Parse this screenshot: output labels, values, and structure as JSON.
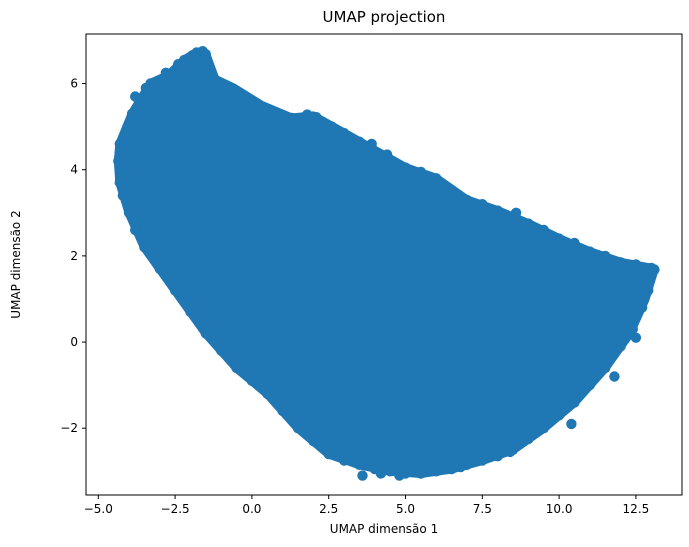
{
  "chart_data": {
    "type": "scatter",
    "title": "UMAP projection",
    "xlabel": "UMAP dimensão 1",
    "ylabel": "UMAP dimensão 2",
    "xlim": [
      -5.4,
      14.0
    ],
    "ylim": [
      -3.55,
      7.15
    ],
    "xticks": [
      {
        "value": -5.0,
        "label": "−5.0"
      },
      {
        "value": -2.5,
        "label": "−2.5"
      },
      {
        "value": 0.0,
        "label": "0.0"
      },
      {
        "value": 2.5,
        "label": "2.5"
      },
      {
        "value": 5.0,
        "label": "5.0"
      },
      {
        "value": 7.5,
        "label": "7.5"
      },
      {
        "value": 10.0,
        "label": "10.0"
      },
      {
        "value": 12.5,
        "label": "12.5"
      }
    ],
    "yticks": [
      {
        "value": -2,
        "label": "−2"
      },
      {
        "value": 0,
        "label": "0"
      },
      {
        "value": 2,
        "label": "2"
      },
      {
        "value": 4,
        "label": "4"
      },
      {
        "value": 6,
        "label": "6"
      }
    ],
    "grid": false,
    "series": [
      {
        "color": "#1f77b4",
        "outline": [
          [
            -4.3,
            4.6
          ],
          [
            -3.9,
            5.3
          ],
          [
            -3.3,
            6.0
          ],
          [
            -2.7,
            6.2
          ],
          [
            -2.2,
            6.55
          ],
          [
            -1.8,
            6.72
          ],
          [
            -1.5,
            6.68
          ],
          [
            -1.2,
            6.1
          ],
          [
            -0.6,
            5.9
          ],
          [
            0.3,
            5.5
          ],
          [
            1.3,
            5.2
          ],
          [
            2.0,
            5.25
          ],
          [
            3.0,
            4.85
          ],
          [
            4.0,
            4.45
          ],
          [
            5.0,
            4.05
          ],
          [
            6.0,
            3.8
          ],
          [
            7.0,
            3.3
          ],
          [
            8.0,
            3.05
          ],
          [
            9.0,
            2.75
          ],
          [
            10.0,
            2.4
          ],
          [
            11.0,
            2.1
          ],
          [
            12.0,
            1.85
          ],
          [
            13.1,
            1.7
          ],
          [
            12.8,
            1.0
          ],
          [
            12.3,
            0.2
          ],
          [
            11.5,
            -0.6
          ],
          [
            10.5,
            -1.4
          ],
          [
            9.5,
            -2.0
          ],
          [
            8.5,
            -2.5
          ],
          [
            7.5,
            -2.75
          ],
          [
            6.5,
            -2.95
          ],
          [
            5.5,
            -3.05
          ],
          [
            4.5,
            -3.0
          ],
          [
            3.5,
            -2.85
          ],
          [
            2.5,
            -2.6
          ],
          [
            1.5,
            -2.0
          ],
          [
            0.5,
            -1.2
          ],
          [
            -0.5,
            -0.6
          ],
          [
            -1.5,
            0.2
          ],
          [
            -2.5,
            1.2
          ],
          [
            -3.5,
            2.2
          ],
          [
            -4.0,
            3.0
          ],
          [
            -4.3,
            3.7
          ],
          [
            -4.35,
            4.2
          ]
        ],
        "points": [
          [
            -4.3,
            4.6
          ],
          [
            -4.2,
            4.1
          ],
          [
            -3.9,
            5.3
          ],
          [
            -3.3,
            6.0
          ],
          [
            -3.0,
            5.95
          ],
          [
            -2.7,
            6.2
          ],
          [
            -2.4,
            6.45
          ],
          [
            -2.2,
            6.55
          ],
          [
            -1.95,
            6.65
          ],
          [
            -1.8,
            6.72
          ],
          [
            -1.6,
            6.75
          ],
          [
            -1.5,
            6.68
          ],
          [
            -1.4,
            6.3
          ],
          [
            -1.3,
            6.05
          ],
          [
            -2.05,
            6.1
          ],
          [
            -1.0,
            5.9
          ],
          [
            -0.3,
            5.6
          ],
          [
            0.5,
            5.4
          ],
          [
            1.3,
            5.2
          ],
          [
            1.8,
            5.28
          ],
          [
            2.1,
            5.22
          ],
          [
            2.6,
            5.0
          ],
          [
            3.0,
            4.85
          ],
          [
            3.5,
            4.65
          ],
          [
            3.9,
            4.6
          ],
          [
            4.4,
            4.35
          ],
          [
            5.0,
            4.05
          ],
          [
            5.5,
            3.95
          ],
          [
            6.0,
            3.8
          ],
          [
            6.5,
            3.5
          ],
          [
            7.0,
            3.3
          ],
          [
            7.5,
            3.2
          ],
          [
            8.0,
            3.05
          ],
          [
            8.6,
            3.0
          ],
          [
            9.0,
            2.75
          ],
          [
            9.5,
            2.6
          ],
          [
            10.0,
            2.4
          ],
          [
            10.5,
            2.3
          ],
          [
            11.0,
            2.1
          ],
          [
            11.5,
            2.0
          ],
          [
            12.0,
            1.85
          ],
          [
            12.5,
            1.8
          ],
          [
            13.0,
            1.72
          ],
          [
            13.1,
            1.68
          ],
          [
            12.9,
            1.2
          ],
          [
            12.7,
            0.8
          ],
          [
            12.4,
            0.3
          ],
          [
            12.0,
            -0.1
          ],
          [
            11.5,
            -0.6
          ],
          [
            11.0,
            -1.0
          ],
          [
            10.5,
            -1.4
          ],
          [
            10.0,
            -1.7
          ],
          [
            9.5,
            -2.0
          ],
          [
            9.0,
            -2.25
          ],
          [
            8.5,
            -2.5
          ],
          [
            8.0,
            -2.65
          ],
          [
            7.5,
            -2.75
          ],
          [
            7.0,
            -2.85
          ],
          [
            6.5,
            -2.95
          ],
          [
            6.0,
            -3.0
          ],
          [
            5.5,
            -3.05
          ],
          [
            5.0,
            -3.05
          ],
          [
            4.5,
            -3.0
          ],
          [
            4.0,
            -2.95
          ],
          [
            3.5,
            -2.85
          ],
          [
            3.0,
            -2.75
          ],
          [
            2.5,
            -2.6
          ],
          [
            2.0,
            -2.3
          ],
          [
            1.5,
            -2.0
          ],
          [
            1.0,
            -1.6
          ],
          [
            0.5,
            -1.2
          ],
          [
            0.0,
            -0.9
          ],
          [
            -0.5,
            -0.6
          ],
          [
            -1.0,
            -0.2
          ],
          [
            -1.5,
            0.2
          ],
          [
            -2.0,
            0.7
          ],
          [
            -2.5,
            1.2
          ],
          [
            -3.0,
            1.7
          ],
          [
            -3.5,
            2.2
          ],
          [
            -3.8,
            2.6
          ],
          [
            -4.0,
            3.0
          ],
          [
            -4.2,
            3.4
          ],
          [
            -4.3,
            3.7
          ],
          [
            -4.35,
            4.2
          ],
          [
            3.6,
            -3.1
          ],
          [
            4.2,
            -3.05
          ],
          [
            4.8,
            -3.1
          ],
          [
            6.8,
            -2.9
          ],
          [
            8.4,
            -2.55
          ],
          [
            10.4,
            -1.9
          ],
          [
            11.8,
            -0.8
          ],
          [
            12.5,
            0.1
          ],
          [
            -3.8,
            5.7
          ],
          [
            -3.45,
            5.9
          ],
          [
            -2.8,
            6.25
          ]
        ]
      }
    ]
  }
}
